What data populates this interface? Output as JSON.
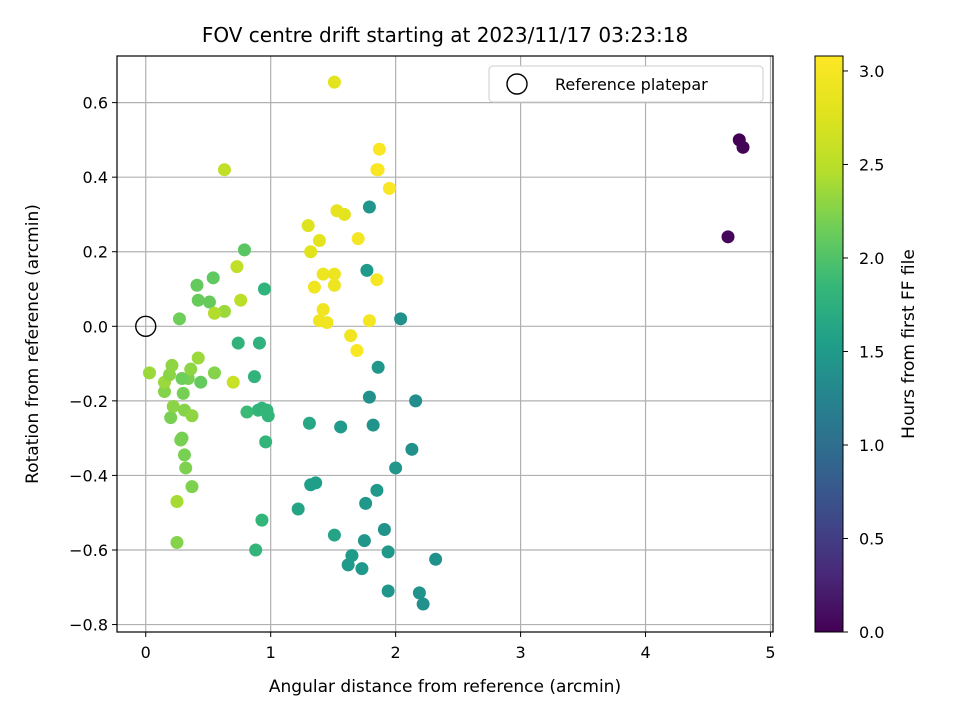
{
  "chart_data": {
    "type": "scatter",
    "title": "FOV centre drift starting at 2023/11/17 03:23:18",
    "xlabel": "Angular distance from reference (arcmin)",
    "ylabel": "Rotation from reference (arcmin)",
    "xlim": [
      -0.23,
      5.02
    ],
    "ylim": [
      -0.82,
      0.725
    ],
    "xticks": [
      0,
      1,
      2,
      3,
      4,
      5
    ],
    "yticks": [
      -0.8,
      -0.6,
      -0.4,
      -0.2,
      0.0,
      0.2,
      0.4,
      0.6
    ],
    "xtick_labels": [
      "0",
      "1",
      "2",
      "3",
      "4",
      "5"
    ],
    "ytick_labels": [
      "−0.8",
      "−0.6",
      "−0.4",
      "−0.2",
      "0.0",
      "0.2",
      "0.4",
      "0.6"
    ],
    "grid": true,
    "legend": {
      "placement": "top-right",
      "entries": [
        "Reference platepar"
      ]
    },
    "reference_point": {
      "x": 0.0,
      "y": 0.0
    },
    "colorbar": {
      "label": "Hours from first FF file",
      "colormap": "viridis",
      "range": [
        0.0,
        3.08
      ],
      "ticks": [
        0.0,
        0.5,
        1.0,
        1.5,
        2.0,
        2.5,
        3.0
      ],
      "tick_labels": [
        "0.0",
        "0.5",
        "1.0",
        "1.5",
        "2.0",
        "2.5",
        "3.0"
      ]
    },
    "series": [
      {
        "points": [
          {
            "x": 4.75,
            "y": 0.5,
            "h": 0.0
          },
          {
            "x": 4.78,
            "y": 0.48,
            "h": 0.02
          },
          {
            "x": 4.66,
            "y": 0.24,
            "h": 0.05
          },
          {
            "x": 1.79,
            "y": 0.32,
            "h": 1.45
          },
          {
            "x": 1.77,
            "y": 0.15,
            "h": 1.5
          },
          {
            "x": 2.04,
            "y": 0.02,
            "h": 1.4
          },
          {
            "x": 1.86,
            "y": -0.11,
            "h": 1.45
          },
          {
            "x": 1.79,
            "y": -0.19,
            "h": 1.4
          },
          {
            "x": 2.16,
            "y": -0.2,
            "h": 1.38
          },
          {
            "x": 1.82,
            "y": -0.265,
            "h": 1.42
          },
          {
            "x": 1.56,
            "y": -0.27,
            "h": 1.5
          },
          {
            "x": 2.13,
            "y": -0.33,
            "h": 1.4
          },
          {
            "x": 2.0,
            "y": -0.38,
            "h": 1.45
          },
          {
            "x": 1.85,
            "y": -0.44,
            "h": 1.48
          },
          {
            "x": 1.76,
            "y": -0.475,
            "h": 1.48
          },
          {
            "x": 1.91,
            "y": -0.545,
            "h": 1.42
          },
          {
            "x": 1.75,
            "y": -0.575,
            "h": 1.45
          },
          {
            "x": 1.94,
            "y": -0.605,
            "h": 1.48
          },
          {
            "x": 2.32,
            "y": -0.625,
            "h": 1.4
          },
          {
            "x": 1.65,
            "y": -0.615,
            "h": 1.52
          },
          {
            "x": 1.62,
            "y": -0.64,
            "h": 1.5
          },
          {
            "x": 1.73,
            "y": -0.65,
            "h": 1.48
          },
          {
            "x": 1.94,
            "y": -0.71,
            "h": 1.45
          },
          {
            "x": 2.19,
            "y": -0.715,
            "h": 1.42
          },
          {
            "x": 2.22,
            "y": -0.745,
            "h": 1.4
          },
          {
            "x": 1.51,
            "y": -0.56,
            "h": 1.62
          },
          {
            "x": 1.32,
            "y": -0.425,
            "h": 1.55
          },
          {
            "x": 1.36,
            "y": -0.42,
            "h": 1.55
          },
          {
            "x": 1.22,
            "y": -0.49,
            "h": 1.62
          },
          {
            "x": 1.31,
            "y": -0.26,
            "h": 1.65
          },
          {
            "x": 0.95,
            "y": 0.1,
            "h": 1.8
          },
          {
            "x": 0.74,
            "y": -0.045,
            "h": 1.8
          },
          {
            "x": 0.91,
            "y": -0.045,
            "h": 1.78
          },
          {
            "x": 0.87,
            "y": -0.135,
            "h": 1.8
          },
          {
            "x": 0.9,
            "y": -0.225,
            "h": 1.82
          },
          {
            "x": 0.93,
            "y": -0.22,
            "h": 1.8
          },
          {
            "x": 0.97,
            "y": -0.225,
            "h": 1.82
          },
          {
            "x": 0.98,
            "y": -0.24,
            "h": 1.82
          },
          {
            "x": 0.81,
            "y": -0.23,
            "h": 1.88
          },
          {
            "x": 0.96,
            "y": -0.31,
            "h": 1.82
          },
          {
            "x": 0.93,
            "y": -0.52,
            "h": 1.82
          },
          {
            "x": 0.88,
            "y": -0.6,
            "h": 1.82
          },
          {
            "x": 0.79,
            "y": 0.205,
            "h": 2.05
          },
          {
            "x": 0.41,
            "y": 0.11,
            "h": 2.1
          },
          {
            "x": 0.54,
            "y": 0.13,
            "h": 2.08
          },
          {
            "x": 0.42,
            "y": 0.07,
            "h": 2.12
          },
          {
            "x": 0.51,
            "y": 0.065,
            "h": 2.12
          },
          {
            "x": 0.27,
            "y": 0.02,
            "h": 2.15
          },
          {
            "x": 0.55,
            "y": -0.125,
            "h": 2.25
          },
          {
            "x": 0.44,
            "y": -0.15,
            "h": 2.1
          },
          {
            "x": 0.34,
            "y": -0.14,
            "h": 2.2
          },
          {
            "x": 0.29,
            "y": -0.14,
            "h": 2.15
          },
          {
            "x": 0.3,
            "y": -0.18,
            "h": 2.18
          },
          {
            "x": 0.31,
            "y": -0.225,
            "h": 2.25
          },
          {
            "x": 0.37,
            "y": -0.24,
            "h": 2.3
          },
          {
            "x": 0.2,
            "y": -0.245,
            "h": 2.2
          },
          {
            "x": 0.29,
            "y": -0.3,
            "h": 2.18
          },
          {
            "x": 0.28,
            "y": -0.305,
            "h": 2.2
          },
          {
            "x": 0.31,
            "y": -0.345,
            "h": 2.2
          },
          {
            "x": 0.32,
            "y": -0.38,
            "h": 2.22
          },
          {
            "x": 0.37,
            "y": -0.43,
            "h": 2.22
          },
          {
            "x": 0.25,
            "y": -0.58,
            "h": 2.25
          },
          {
            "x": 0.25,
            "y": -0.47,
            "h": 2.4
          },
          {
            "x": 0.15,
            "y": -0.175,
            "h": 2.25
          },
          {
            "x": 0.15,
            "y": -0.15,
            "h": 2.35
          },
          {
            "x": 0.19,
            "y": -0.13,
            "h": 2.28
          },
          {
            "x": 0.21,
            "y": -0.105,
            "h": 2.3
          },
          {
            "x": 0.22,
            "y": -0.215,
            "h": 2.28
          },
          {
            "x": 0.03,
            "y": -0.125,
            "h": 2.35
          },
          {
            "x": 0.36,
            "y": -0.115,
            "h": 2.3
          },
          {
            "x": 0.42,
            "y": -0.085,
            "h": 2.35
          },
          {
            "x": 0.63,
            "y": 0.04,
            "h": 2.35
          },
          {
            "x": 0.55,
            "y": 0.035,
            "h": 2.45
          },
          {
            "x": 0.76,
            "y": 0.07,
            "h": 2.5
          },
          {
            "x": 0.73,
            "y": 0.16,
            "h": 2.55
          },
          {
            "x": 0.63,
            "y": 0.42,
            "h": 2.55
          },
          {
            "x": 0.7,
            "y": -0.15,
            "h": 2.6
          },
          {
            "x": 1.3,
            "y": 0.27,
            "h": 2.75
          },
          {
            "x": 1.32,
            "y": 0.2,
            "h": 2.78
          },
          {
            "x": 1.39,
            "y": 0.23,
            "h": 2.8
          },
          {
            "x": 1.59,
            "y": 0.3,
            "h": 2.8
          },
          {
            "x": 1.53,
            "y": 0.31,
            "h": 2.85
          },
          {
            "x": 1.42,
            "y": 0.14,
            "h": 2.9
          },
          {
            "x": 1.51,
            "y": 0.14,
            "h": 2.92
          },
          {
            "x": 1.35,
            "y": 0.105,
            "h": 2.95
          },
          {
            "x": 1.51,
            "y": 0.11,
            "h": 2.9
          },
          {
            "x": 1.42,
            "y": 0.045,
            "h": 2.95
          },
          {
            "x": 1.39,
            "y": 0.015,
            "h": 2.95
          },
          {
            "x": 1.45,
            "y": 0.01,
            "h": 2.95
          },
          {
            "x": 1.64,
            "y": -0.025,
            "h": 2.95
          },
          {
            "x": 1.7,
            "y": 0.235,
            "h": 2.98
          },
          {
            "x": 1.79,
            "y": 0.015,
            "h": 3.0
          },
          {
            "x": 1.85,
            "y": 0.125,
            "h": 3.02
          },
          {
            "x": 1.69,
            "y": -0.065,
            "h": 3.05
          },
          {
            "x": 1.95,
            "y": 0.37,
            "h": 3.05
          },
          {
            "x": 1.85,
            "y": 0.42,
            "h": 3.03
          },
          {
            "x": 1.86,
            "y": 0.42,
            "h": 3.05
          },
          {
            "x": 1.87,
            "y": 0.475,
            "h": 3.05
          },
          {
            "x": 1.51,
            "y": 0.655,
            "h": 2.8
          }
        ]
      }
    ]
  }
}
